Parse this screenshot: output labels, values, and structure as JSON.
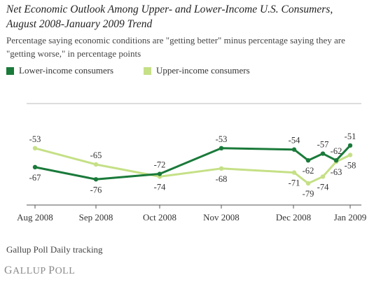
{
  "header": {
    "title_line1": "Net Economic Outlook Among Upper- and Lower-Income U.S. Consumers,",
    "title_line2": "August 2008-January 2009 Trend",
    "subtitle_line1": "Percentage saying economic conditions are \"getting better\" minus percentage saying they are",
    "subtitle_line2": "\"getting worse,\" in percentage points"
  },
  "legend": [
    {
      "label": "Lower-income consumers",
      "color": "#1a7a3a"
    },
    {
      "label": "Upper-income consumers",
      "color": "#c5e086"
    }
  ],
  "footer": {
    "source": "Gallup Poll Daily tracking",
    "logo": "GALLUP POLL",
    "logo_parts": [
      "G",
      "ALLUP ",
      "P",
      "OLL"
    ]
  },
  "chart_data": {
    "type": "line",
    "categories": [
      "Aug 2008",
      "Sep 2008",
      "Oct 2008",
      "Nov 2008",
      "Dec 2008",
      "Jan 2009"
    ],
    "ylim": [
      -95,
      -20
    ],
    "grid": "horizontal-top",
    "series": [
      {
        "name": "Lower-income consumers",
        "color": "#1a7a3a",
        "points": [
          {
            "x": "Aug 2008",
            "y": -67,
            "label": "-67",
            "pos": "below"
          },
          {
            "x": "Sep 2008",
            "y": -76,
            "label": "-76",
            "pos": "below"
          },
          {
            "x": "Oct 2008",
            "y": -72,
            "label": "-72",
            "pos": "above"
          },
          {
            "x": "Nov 2008",
            "y": -53,
            "label": "-53",
            "pos": "above"
          },
          {
            "x": "Dec 2008",
            "y": -54,
            "label": "-54",
            "pos": "above"
          },
          {
            "x": "mid-Dec 2008",
            "y": -62,
            "label": "-62",
            "pos": "below"
          },
          {
            "x": "late Dec 2008",
            "y": -57,
            "label": "-57",
            "pos": "above"
          },
          {
            "x": "early Jan 2009",
            "y": -62,
            "label": "-62",
            "pos": "above"
          },
          {
            "x": "Jan 2009",
            "y": -51,
            "label": "-51",
            "pos": "above"
          }
        ]
      },
      {
        "name": "Upper-income consumers",
        "color": "#c5e086",
        "points": [
          {
            "x": "Aug 2008",
            "y": -53,
            "label": "-53",
            "pos": "above"
          },
          {
            "x": "Sep 2008",
            "y": -65,
            "label": "-65",
            "pos": "above"
          },
          {
            "x": "Oct 2008",
            "y": -74,
            "label": "-74",
            "pos": "below"
          },
          {
            "x": "Nov 2008",
            "y": -68,
            "label": "-68",
            "pos": "below"
          },
          {
            "x": "Dec 2008",
            "y": -71,
            "label": "-71",
            "pos": "below"
          },
          {
            "x": "mid-Dec 2008",
            "y": -79,
            "label": "-79",
            "pos": "below"
          },
          {
            "x": "late Dec 2008",
            "y": -74,
            "label": "-74",
            "pos": "below"
          },
          {
            "x": "early Jan 2009",
            "y": -63,
            "label": "-63",
            "pos": "below"
          },
          {
            "x": "Jan 2009",
            "y": -58,
            "label": "-58",
            "pos": "below"
          }
        ]
      }
    ]
  }
}
